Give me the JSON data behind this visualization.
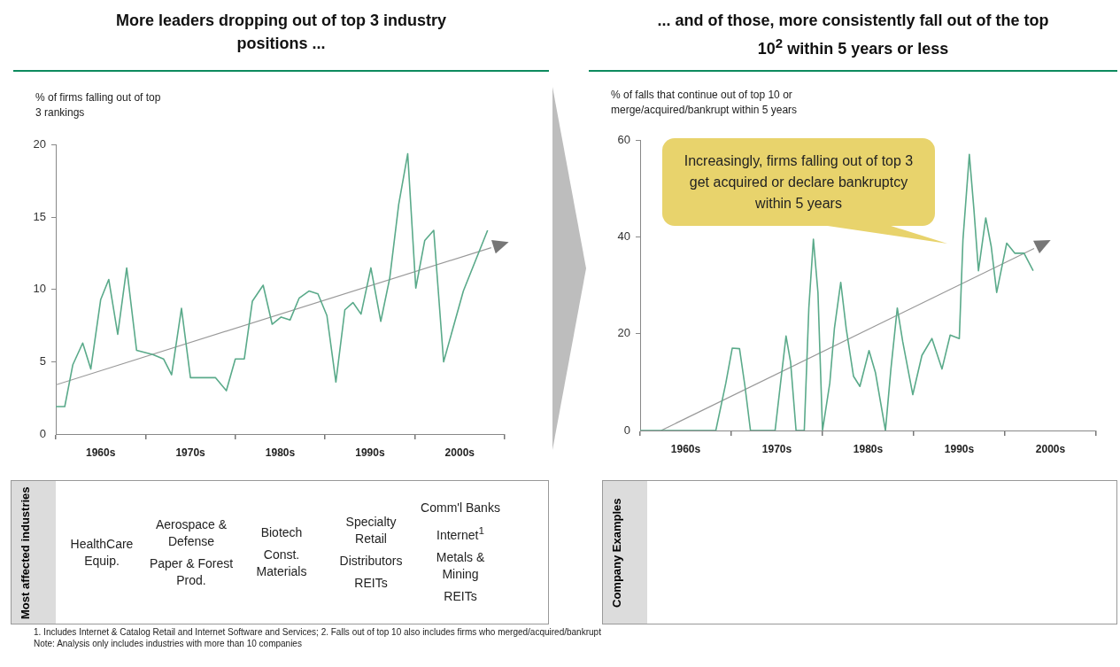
{
  "chart_data": [
    {
      "type": "line",
      "title": "More leaders dropping out of top 3 industry positions ...",
      "ylabel": "% of firms falling out of top 3 rankings",
      "xlim": [
        1955,
        2005
      ],
      "xticks": [
        {
          "value": 1955,
          "label": null
        },
        {
          "value": 1960,
          "label": "1960s"
        },
        {
          "value": 1965,
          "label": null
        },
        {
          "value": 1970,
          "label": "1970s"
        },
        {
          "value": 1975,
          "label": null
        },
        {
          "value": 1980,
          "label": "1980s"
        },
        {
          "value": 1985,
          "label": null
        },
        {
          "value": 1990,
          "label": "1990s"
        },
        {
          "value": 1995,
          "label": null
        },
        {
          "value": 2000,
          "label": "2000s"
        },
        {
          "value": 2005,
          "label": null
        }
      ],
      "ylim": [
        0,
        20
      ],
      "yticks": [
        0,
        5,
        10,
        15,
        20
      ],
      "legend": false,
      "series": [
        {
          "color": "#5aaa8a",
          "x": [
            1955,
            1956,
            1956.9,
            1958,
            1958.9,
            1960,
            1960.9,
            1961.9,
            1962.9,
            1964,
            1965.8,
            1967,
            1967.9,
            1969,
            1970,
            1972.8,
            1974,
            1975,
            1976,
            1976.9,
            1978.1,
            1979.1,
            1980.1,
            1981.1,
            1982.1,
            1983.2,
            1984.2,
            1985.2,
            1986.2,
            1987.2,
            1988.1,
            1989,
            1990.1,
            1991.2,
            1992.2,
            1993.2,
            1994.2,
            1995.1,
            1996.1,
            1997.1,
            1998.2,
            2000.4,
            2003.1
          ],
          "values": [
            1.9,
            1.9,
            4.8,
            6.3,
            4.5,
            9.3,
            10.7,
            6.9,
            11.5,
            5.8,
            5.5,
            5.2,
            4.1,
            8.7,
            3.9,
            3.9,
            3.0,
            5.2,
            5.2,
            9.2,
            10.3,
            7.6,
            8.1,
            7.9,
            9.4,
            9.9,
            9.7,
            8.2,
            3.6,
            8.6,
            9.1,
            8.3,
            11.5,
            7.8,
            10.8,
            15.9,
            19.4,
            10.1,
            13.4,
            14.1,
            5.0,
            9.9,
            14.1
          ]
        },
        {
          "type": "line",
          "color": "#999999",
          "x": [
            1955,
            2003.5
          ],
          "values": [
            3.4,
            12.9
          ]
        }
      ],
      "annotations": [
        "Most affected industries",
        "HealthCare Equip.",
        "Aerospace & Defense",
        "Paper & Forest Prod.",
        "Biotech",
        "Const. Materials",
        "Specialty Retail",
        "Distributors",
        "REITs",
        "Comm'l Banks",
        "Internet$^{1}$",
        "Metals & Mining",
        "REITs"
      ]
    },
    {
      "type": "line",
      "title": "... and of those, more consistently fall out of the top 10$^{2}$ within 5 years or less",
      "ylabel": "% of falls that continue out of top 10 or merge/acquired/bankrupt  within 5 years",
      "xlim": [
        1955,
        2005
      ],
      "xticks": [
        {
          "value": 1955,
          "label": null
        },
        {
          "value": 1960,
          "label": "1960s"
        },
        {
          "value": 1965,
          "label": null
        },
        {
          "value": 1970,
          "label": "1970s"
        },
        {
          "value": 1975,
          "label": null
        },
        {
          "value": 1980,
          "label": "1980s"
        },
        {
          "value": 1985,
          "label": null
        },
        {
          "value": 1990,
          "label": "1990s"
        },
        {
          "value": 1995,
          "label": null
        },
        {
          "value": 2000,
          "label": "2000s"
        },
        {
          "value": 2005,
          "label": null
        }
      ],
      "ylim": [
        0,
        60
      ],
      "yticks": [
        0,
        20,
        40,
        60
      ],
      "legend": false,
      "series": [
        {
          "color": "#5aaa8a",
          "x": [
            1955,
            1963.3,
            1964.4,
            1965.1,
            1965.9,
            1966.5,
            1967.1,
            1969.8,
            1970.4,
            1971,
            1971.5,
            1972.1,
            1973,
            1973.5,
            1974,
            1974.5,
            1975,
            1975.8,
            1976.3,
            1977,
            1977.6,
            1978.4,
            1979.1,
            1980.1,
            1980.8,
            1981.9,
            1982.5,
            1983.2,
            1983.8,
            1984.9,
            1985.9,
            1987,
            1988.1,
            1989,
            1990,
            1990.4,
            1991.1,
            1991.6,
            1992.1,
            1992.9,
            1993.5,
            1994.1,
            1995.2,
            1996.1,
            1997.1,
            1998.1
          ],
          "values": [
            0,
            0,
            9.8,
            17,
            16.9,
            9.1,
            0,
            0,
            9.8,
            19.5,
            14.1,
            0,
            0,
            25.3,
            39.5,
            28.5,
            0,
            9.8,
            21,
            30.6,
            21,
            11.2,
            9.1,
            16.5,
            12,
            0,
            12.7,
            25.3,
            18.3,
            7.4,
            15.5,
            19,
            12.7,
            19.7,
            19,
            39.4,
            57,
            45.7,
            33,
            43.9,
            38,
            28.5,
            38.7,
            36.6,
            36.6,
            33
          ]
        },
        {
          "type": "line",
          "color": "#999999",
          "x": [
            1957.3,
            1998.2
          ],
          "values": [
            0,
            37.6
          ]
        }
      ],
      "annotations": [
        "Company Examples",
        "Increasingly,  firms falling out of top 3 get acquired or declare bankruptcy within 5 years",
        "1. Includes Internet & Catalog Retail and Internet Software and Services; 2.  Falls out of top 10 also includes firms who merged/acquired/bankrupt",
        "Note:  Analysis only includes industries with more than 10 companies"
      ]
    }
  ]
}
